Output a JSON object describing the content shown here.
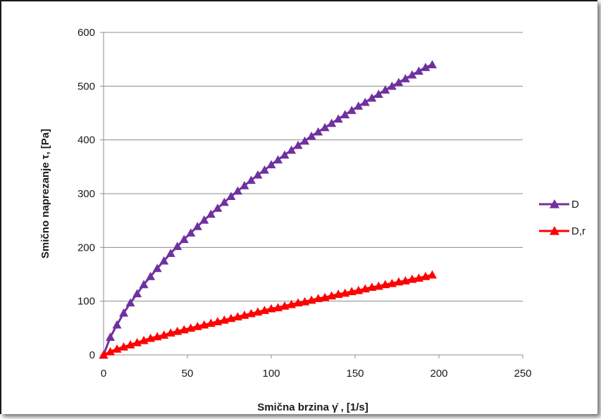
{
  "chart_data": {
    "type": "scatter",
    "xlabel": "Smična brzina γ̇ , [1/s]",
    "ylabel": "Smično naprezanje τ, [Pa]",
    "xlim": [
      0,
      250
    ],
    "ylim": [
      0,
      600
    ],
    "xticks": [
      0,
      50,
      100,
      150,
      200,
      250
    ],
    "yticks": [
      0,
      100,
      200,
      300,
      400,
      500,
      600
    ],
    "grid": "horizontal",
    "legend_position": "right",
    "marker": "triangle",
    "series": [
      {
        "name": "D",
        "color": "#7030A0",
        "points": [
          [
            0,
            0
          ],
          [
            4,
            33
          ],
          [
            8,
            56
          ],
          [
            12,
            78
          ],
          [
            16,
            97
          ],
          [
            20,
            114
          ],
          [
            24,
            131
          ],
          [
            28,
            146
          ],
          [
            32,
            161
          ],
          [
            36,
            175
          ],
          [
            40,
            189
          ],
          [
            44,
            202
          ],
          [
            48,
            215
          ],
          [
            52,
            227
          ],
          [
            56,
            239
          ],
          [
            60,
            251
          ],
          [
            64,
            262
          ],
          [
            68,
            273
          ],
          [
            72,
            284
          ],
          [
            76,
            295
          ],
          [
            80,
            305
          ],
          [
            84,
            315
          ],
          [
            88,
            325
          ],
          [
            92,
            335
          ],
          [
            96,
            344
          ],
          [
            100,
            354
          ],
          [
            104,
            363
          ],
          [
            108,
            372
          ],
          [
            112,
            381
          ],
          [
            116,
            390
          ],
          [
            120,
            398
          ],
          [
            124,
            407
          ],
          [
            128,
            415
          ],
          [
            132,
            423
          ],
          [
            136,
            431
          ],
          [
            140,
            439
          ],
          [
            144,
            447
          ],
          [
            148,
            455
          ],
          [
            152,
            463
          ],
          [
            156,
            470
          ],
          [
            160,
            478
          ],
          [
            164,
            485
          ],
          [
            168,
            493
          ],
          [
            172,
            500
          ],
          [
            176,
            507
          ],
          [
            180,
            514
          ],
          [
            184,
            521
          ],
          [
            188,
            528
          ],
          [
            192,
            535
          ],
          [
            196,
            540
          ]
        ]
      },
      {
        "name": "D,r",
        "color": "#FF0000",
        "points": [
          [
            0,
            0
          ],
          [
            4,
            6
          ],
          [
            8,
            11
          ],
          [
            12,
            15
          ],
          [
            16,
            19
          ],
          [
            20,
            23
          ],
          [
            24,
            27
          ],
          [
            28,
            31
          ],
          [
            32,
            34
          ],
          [
            36,
            37
          ],
          [
            40,
            41
          ],
          [
            44,
            44
          ],
          [
            48,
            47
          ],
          [
            52,
            50
          ],
          [
            56,
            53
          ],
          [
            60,
            56
          ],
          [
            64,
            59
          ],
          [
            68,
            62
          ],
          [
            72,
            65
          ],
          [
            76,
            68
          ],
          [
            80,
            71
          ],
          [
            84,
            74
          ],
          [
            88,
            77
          ],
          [
            92,
            80
          ],
          [
            96,
            83
          ],
          [
            100,
            86
          ],
          [
            104,
            88
          ],
          [
            108,
            91
          ],
          [
            112,
            94
          ],
          [
            116,
            97
          ],
          [
            120,
            99
          ],
          [
            124,
            102
          ],
          [
            128,
            105
          ],
          [
            132,
            107
          ],
          [
            136,
            110
          ],
          [
            140,
            113
          ],
          [
            144,
            115
          ],
          [
            148,
            118
          ],
          [
            152,
            120
          ],
          [
            156,
            123
          ],
          [
            160,
            126
          ],
          [
            164,
            128
          ],
          [
            168,
            131
          ],
          [
            172,
            133
          ],
          [
            176,
            136
          ],
          [
            180,
            138
          ],
          [
            184,
            141
          ],
          [
            188,
            143
          ],
          [
            192,
            146
          ],
          [
            196,
            149
          ]
        ]
      }
    ]
  }
}
